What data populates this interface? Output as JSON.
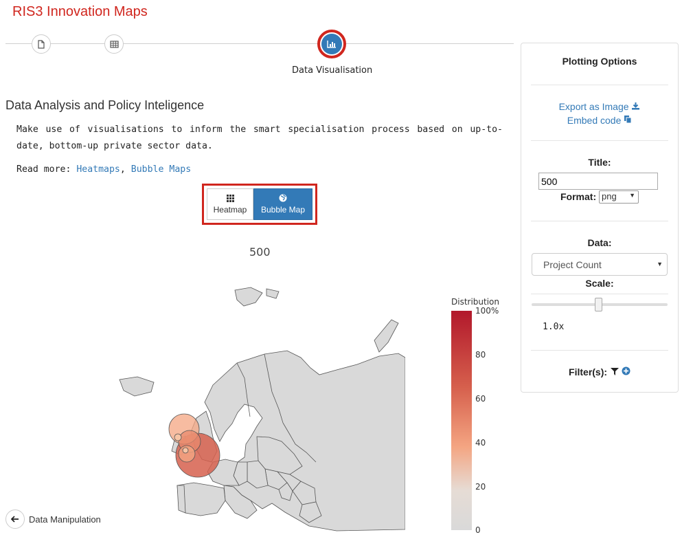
{
  "app": {
    "title": "RIS3 Innovation Maps"
  },
  "stepper": {
    "active_step_label": "Data Visualisation",
    "icons": [
      "file-icon",
      "table-icon",
      "bar-chart-icon"
    ]
  },
  "section": {
    "heading": "Data Analysis and Policy Inteligence",
    "intro": "Make use of visualisations to inform the smart specialisation process based on up-to-date, bottom-up private sector data.",
    "read_more_label": "Read more:",
    "links": [
      "Heatmaps",
      "Bubble Maps"
    ],
    "separator": ","
  },
  "mode_toggle": {
    "heatmap_label": "Heatmap",
    "bubble_label": "Bubble Map",
    "active": "Bubble Map"
  },
  "plot": {
    "title": "500",
    "legend_title": "Distribution",
    "colorbar_ticks": [
      "100%",
      "80",
      "60",
      "40",
      "20",
      "0"
    ]
  },
  "nav": {
    "back_label": "Data Manipulation"
  },
  "panel": {
    "heading": "Plotting Options",
    "export_label": "Export as Image",
    "embed_label": "Embed code",
    "title_label": "Title:",
    "title_value": "500",
    "format_label": "Format:",
    "format_value": "png",
    "data_label": "Data:",
    "data_value": "Project Count",
    "scale_label": "Scale:",
    "scale_value": "1.0x",
    "filters_label": "Filter(s):"
  },
  "colors": {
    "brand_red": "#d0261e",
    "accent_blue": "#337ab7",
    "land": "#d9d9d9"
  }
}
